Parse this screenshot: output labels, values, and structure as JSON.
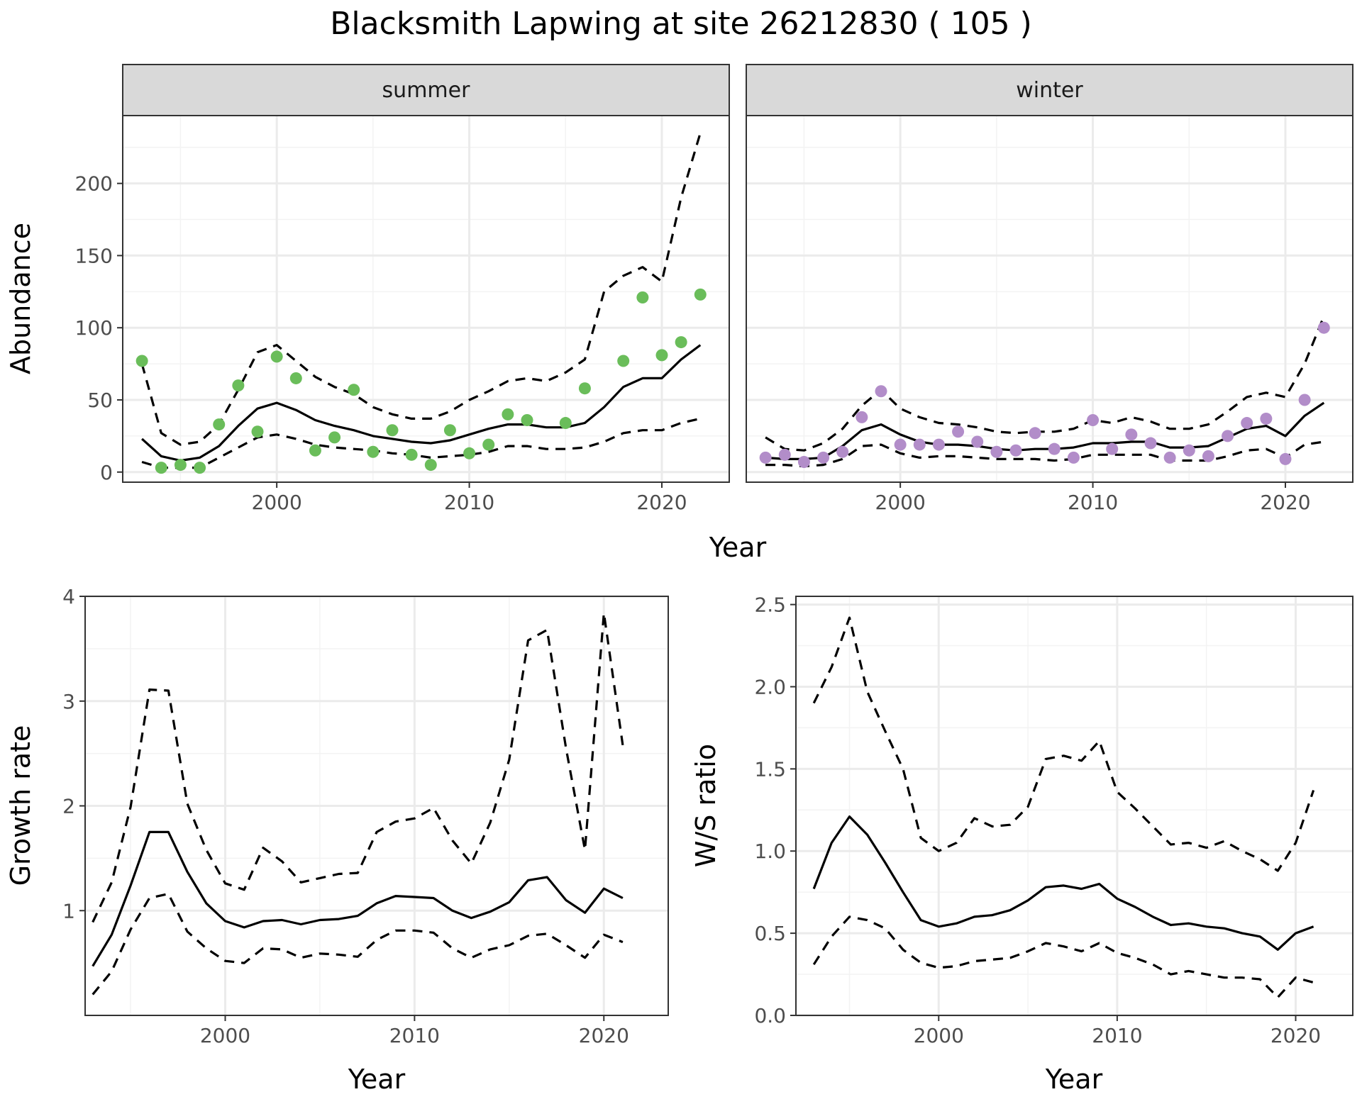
{
  "title": "Blacksmith Lapwing at site 26212830 ( 105 )",
  "chart_data": [
    {
      "type": "scatter",
      "facets": [
        "summer",
        "winter"
      ],
      "xlabel": "Year",
      "ylabel": "Abundance",
      "xlim": [
        1992,
        2023.5
      ],
      "ylim": [
        -7,
        247
      ],
      "x_ticks": [
        2000,
        2010,
        2020
      ],
      "y_ticks": [
        0,
        50,
        100,
        150,
        200
      ],
      "grid": true,
      "panels": [
        {
          "name": "summer",
          "point_color": "#6ABD5A",
          "points_x": [
            1993,
            1994,
            1995,
            1996,
            1997,
            1998,
            1999,
            2000,
            2001,
            2002,
            2003,
            2004,
            2005,
            2006,
            2007,
            2008,
            2009,
            2010,
            2011,
            2012,
            2013,
            2015,
            2016,
            2018,
            2019,
            2020,
            2021,
            2022
          ],
          "points_y": [
            77,
            3,
            5,
            3,
            33,
            60,
            28,
            80,
            65,
            15,
            24,
            57,
            14,
            29,
            12,
            5,
            29,
            13,
            19,
            40,
            36,
            34,
            58,
            77,
            121,
            81,
            90,
            123
          ],
          "x": [
            1993,
            1994,
            1995,
            1996,
            1997,
            1998,
            1999,
            2000,
            2001,
            2002,
            2003,
            2004,
            2005,
            2006,
            2007,
            2008,
            2009,
            2010,
            2011,
            2012,
            2013,
            2014,
            2015,
            2016,
            2017,
            2018,
            2019,
            2020,
            2021,
            2022
          ],
          "mean": [
            23,
            11,
            8,
            10,
            18,
            32,
            44,
            48,
            43,
            36,
            32,
            29,
            25,
            23,
            21,
            20,
            22,
            26,
            30,
            33,
            33,
            31,
            31,
            34,
            45,
            59,
            65,
            65,
            78,
            88
          ],
          "upper": [
            75,
            27,
            19,
            21,
            33,
            57,
            83,
            88,
            77,
            66,
            59,
            54,
            45,
            40,
            37,
            37,
            42,
            50,
            56,
            63,
            65,
            63,
            69,
            78,
            125,
            136,
            142,
            132,
            190,
            235
          ],
          "lower": [
            7,
            3,
            3,
            3,
            10,
            17,
            24,
            26,
            23,
            19,
            17,
            16,
            15,
            13,
            12,
            10,
            11,
            12,
            14,
            18,
            18,
            16,
            16,
            17,
            21,
            27,
            29,
            29,
            34,
            37
          ]
        },
        {
          "name": "winter",
          "point_color": "#B28DC9",
          "points_x": [
            1993,
            1994,
            1995,
            1996,
            1997,
            1998,
            1999,
            2000,
            2001,
            2002,
            2003,
            2004,
            2005,
            2006,
            2007,
            2008,
            2009,
            2010,
            2011,
            2012,
            2013,
            2014,
            2015,
            2016,
            2017,
            2018,
            2019,
            2020,
            2021,
            2022
          ],
          "points_y": [
            10,
            12,
            7,
            10,
            14,
            38,
            56,
            19,
            19,
            19,
            28,
            21,
            14,
            15,
            27,
            16,
            10,
            36,
            16,
            26,
            20,
            10,
            15,
            11,
            25,
            34,
            37,
            9,
            50,
            100
          ],
          "x": [
            1993,
            1994,
            1995,
            1996,
            1997,
            1998,
            1999,
            2000,
            2001,
            2002,
            2003,
            2004,
            2005,
            2006,
            2007,
            2008,
            2009,
            2010,
            2011,
            2012,
            2013,
            2014,
            2015,
            2016,
            2017,
            2018,
            2019,
            2020,
            2021,
            2022
          ],
          "mean": [
            10,
            9,
            9,
            10,
            18,
            29,
            33,
            26,
            21,
            19,
            19,
            18,
            16,
            15,
            16,
            16,
            17,
            20,
            20,
            21,
            21,
            17,
            17,
            18,
            24,
            30,
            32,
            25,
            39,
            48
          ],
          "upper": [
            24,
            16,
            15,
            20,
            30,
            46,
            57,
            44,
            38,
            34,
            33,
            31,
            28,
            27,
            28,
            28,
            30,
            36,
            34,
            38,
            35,
            30,
            30,
            33,
            42,
            52,
            55,
            52,
            75,
            108
          ],
          "lower": [
            5,
            5,
            4,
            5,
            9,
            18,
            19,
            13,
            10,
            11,
            11,
            10,
            9,
            9,
            9,
            8,
            9,
            12,
            12,
            12,
            12,
            8,
            8,
            8,
            11,
            15,
            16,
            10,
            19,
            21
          ]
        }
      ]
    },
    {
      "type": "line",
      "xlabel": "Year",
      "ylabel": "Growth rate",
      "xlim": [
        1992.6,
        2023.4
      ],
      "ylim": [
        0.0,
        4.0
      ],
      "x_ticks": [
        2000,
        2010,
        2020
      ],
      "y_ticks": [
        1,
        2,
        3,
        4
      ],
      "grid": true,
      "x": [
        1993,
        1994,
        1995,
        1996,
        1997,
        1998,
        1999,
        2000,
        2001,
        2002,
        2003,
        2004,
        2005,
        2006,
        2007,
        2008,
        2009,
        2010,
        2011,
        2012,
        2013,
        2014,
        2015,
        2016,
        2017,
        2018,
        2019,
        2020,
        2021
      ],
      "mean": [
        0.47,
        0.77,
        1.24,
        1.75,
        1.75,
        1.37,
        1.07,
        0.9,
        0.84,
        0.9,
        0.91,
        0.87,
        0.91,
        0.92,
        0.95,
        1.07,
        1.14,
        1.13,
        1.12,
        1.0,
        0.93,
        0.99,
        1.08,
        1.29,
        1.32,
        1.1,
        0.98,
        1.21,
        1.12
      ],
      "upper": [
        0.89,
        1.27,
        1.99,
        3.11,
        3.1,
        2.02,
        1.58,
        1.26,
        1.2,
        1.6,
        1.47,
        1.27,
        1.31,
        1.35,
        1.36,
        1.75,
        1.85,
        1.88,
        1.98,
        1.67,
        1.45,
        1.84,
        2.44,
        3.58,
        3.68,
        2.55,
        1.58,
        3.84,
        2.58
      ],
      "lower": [
        0.2,
        0.42,
        0.82,
        1.12,
        1.16,
        0.8,
        0.64,
        0.52,
        0.5,
        0.64,
        0.63,
        0.55,
        0.59,
        0.58,
        0.56,
        0.72,
        0.81,
        0.81,
        0.79,
        0.64,
        0.55,
        0.63,
        0.67,
        0.76,
        0.78,
        0.67,
        0.55,
        0.77,
        0.7
      ]
    },
    {
      "type": "line",
      "xlabel": "Year",
      "ylabel": "W/S ratio",
      "xlim": [
        1992.0,
        2023.2
      ],
      "ylim": [
        0.0,
        2.55
      ],
      "x_ticks": [
        2000,
        2010,
        2020
      ],
      "y_ticks": [
        "0.0",
        "0.5",
        "1.0",
        "1.5",
        "2.0",
        "2.5"
      ],
      "grid": true,
      "x": [
        1993,
        1994,
        1995,
        1996,
        1997,
        1998,
        1999,
        2000,
        2001,
        2002,
        2003,
        2004,
        2005,
        2006,
        2007,
        2008,
        2009,
        2010,
        2011,
        2012,
        2013,
        2014,
        2015,
        2016,
        2017,
        2018,
        2019,
        2020,
        2021
      ],
      "mean": [
        0.77,
        1.05,
        1.21,
        1.1,
        0.93,
        0.75,
        0.58,
        0.54,
        0.56,
        0.6,
        0.61,
        0.64,
        0.7,
        0.78,
        0.79,
        0.77,
        0.8,
        0.71,
        0.66,
        0.6,
        0.55,
        0.56,
        0.54,
        0.53,
        0.5,
        0.48,
        0.4,
        0.5,
        0.54
      ],
      "upper": [
        1.9,
        2.12,
        2.42,
        1.97,
        1.73,
        1.5,
        1.08,
        1.0,
        1.05,
        1.2,
        1.15,
        1.16,
        1.27,
        1.56,
        1.58,
        1.55,
        1.67,
        1.36,
        1.26,
        1.15,
        1.04,
        1.05,
        1.02,
        1.06,
        1.0,
        0.95,
        0.88,
        1.05,
        1.37
      ],
      "lower": [
        0.31,
        0.48,
        0.6,
        0.58,
        0.53,
        0.4,
        0.32,
        0.29,
        0.3,
        0.33,
        0.34,
        0.35,
        0.39,
        0.44,
        0.42,
        0.39,
        0.44,
        0.38,
        0.35,
        0.31,
        0.25,
        0.27,
        0.25,
        0.23,
        0.23,
        0.22,
        0.11,
        0.23,
        0.2
      ]
    }
  ]
}
